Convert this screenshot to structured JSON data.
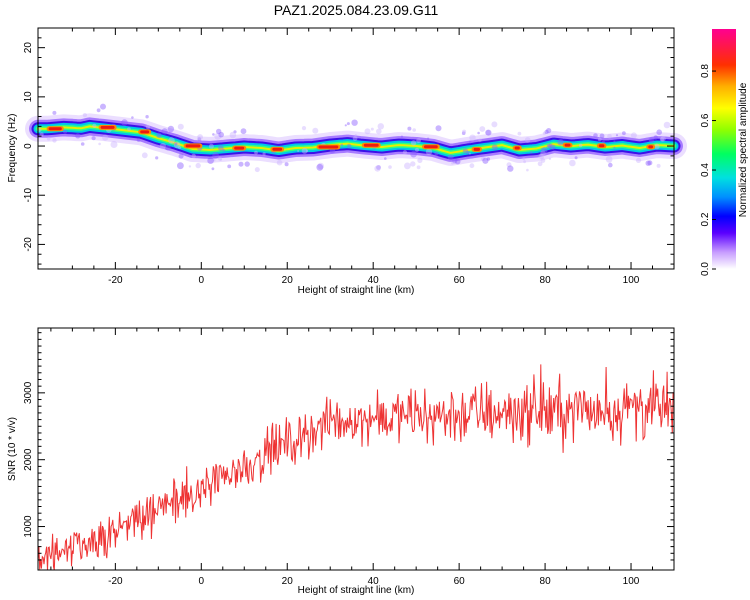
{
  "title": "PAZ1.2025.084.23.09.G11",
  "chart_data": [
    {
      "type": "heatmap",
      "title": "PAZ1.2025.084.23.09.G11",
      "xlabel": "Height of straight line (km)",
      "ylabel": "Frequency (Hz)",
      "xlim": [
        -38,
        110
      ],
      "ylim": [
        -25,
        24
      ],
      "x_ticks": [
        "-20",
        "0",
        "20",
        "40",
        "60",
        "80",
        "100"
      ],
      "y_ticks": [
        "20",
        "10",
        "0",
        "-10",
        "-20"
      ],
      "colorbar": {
        "label": "Normalized spectral amplitude",
        "range": [
          0,
          0.97
        ],
        "ticks": [
          "0.0",
          "0.2",
          "0.4",
          "0.6",
          "0.8"
        ]
      },
      "ridge": {
        "x": [
          -36,
          -32,
          -28,
          -26,
          -22,
          -18,
          -14,
          -10,
          -6,
          -2,
          2,
          6,
          10,
          14,
          18,
          22,
          26,
          30,
          34,
          38,
          42,
          46,
          50,
          54,
          58,
          62,
          66,
          70,
          74,
          78,
          82,
          86,
          90,
          94,
          98,
          102,
          106,
          110
        ],
        "frequency": [
          3.5,
          3.8,
          3.6,
          4.0,
          3.6,
          3.2,
          2.8,
          1.6,
          0.6,
          -0.6,
          -0.8,
          -0.5,
          -0.2,
          -0.4,
          -0.9,
          -0.4,
          -0.3,
          0.2,
          0.5,
          0.1,
          -0.2,
          0.2,
          0.0,
          -0.4,
          -1.4,
          -0.8,
          -0.3,
          0.2,
          -0.8,
          -0.5,
          0.4,
          0.0,
          0.3,
          -0.2,
          0.1,
          -0.4,
          0.2,
          0.0
        ]
      },
      "grid": false
    },
    {
      "type": "line",
      "xlabel": "Height of straight line (km)",
      "ylabel": "SNR (10 * v/v)",
      "xlim": [
        -38,
        110
      ],
      "ylim": [
        350,
        3970
      ],
      "x_ticks": [
        "-20",
        "0",
        "20",
        "40",
        "60",
        "80",
        "100"
      ],
      "y_ticks": [
        "3000",
        "2000",
        "1000"
      ],
      "series": [
        {
          "color": "#ee3333",
          "trend": {
            "x": [
              -38,
              -30,
              -20,
              -10,
              0,
              10,
              20,
              30,
              40,
              50,
              60,
              70,
              80,
              90,
              100,
              110
            ],
            "y": [
              550,
              700,
              950,
              1250,
              1550,
              1900,
              2250,
              2550,
              2620,
              2650,
              2680,
              2720,
              2720,
              2740,
              2760,
              2780
            ]
          },
          "spread": {
            "x": [
              -38,
              0,
              20,
              40,
              60,
              110
            ],
            "y": [
              260,
              360,
              380,
              360,
              520,
              520
            ]
          }
        }
      ],
      "grid": false
    }
  ]
}
